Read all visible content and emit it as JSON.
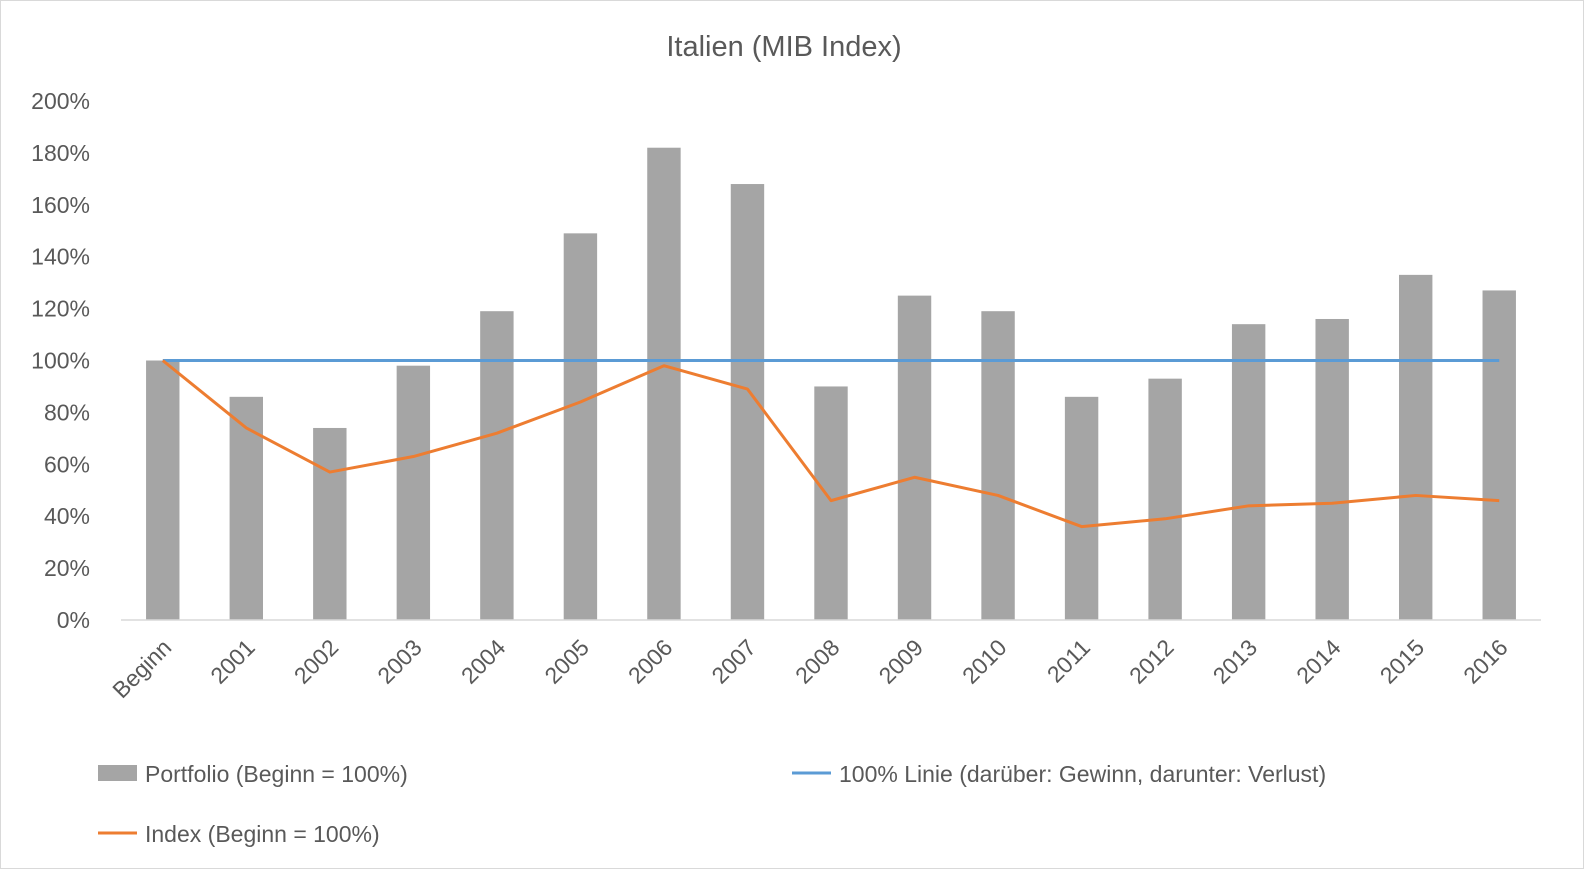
{
  "chart_data": {
    "type": "bar",
    "title": "Italien (MIB Index)",
    "categories": [
      "Beginn",
      "2001",
      "2002",
      "2003",
      "2004",
      "2005",
      "2006",
      "2007",
      "2008",
      "2009",
      "2010",
      "2011",
      "2012",
      "2013",
      "2014",
      "2015",
      "2016"
    ],
    "y_tick_labels": [
      "0%",
      "20%",
      "40%",
      "60%",
      "80%",
      "100%",
      "120%",
      "140%",
      "160%",
      "180%",
      "200%"
    ],
    "ylim": [
      0,
      200
    ],
    "y_step": 20,
    "grid": false,
    "legend_position": "bottom",
    "series": [
      {
        "name": "Portfolio (Beginn = 100%)",
        "type": "bar",
        "color": "#a5a5a5",
        "values": [
          100,
          86,
          74,
          98,
          119,
          149,
          182,
          168,
          90,
          125,
          119,
          86,
          93,
          114,
          116,
          133,
          127
        ]
      },
      {
        "name": "100% Linie (darüber: Gewinn, darunter: Verlust)",
        "type": "line",
        "color": "#5b9bd5",
        "values": [
          100,
          100,
          100,
          100,
          100,
          100,
          100,
          100,
          100,
          100,
          100,
          100,
          100,
          100,
          100,
          100,
          100
        ]
      },
      {
        "name": "Index (Beginn = 100%)",
        "type": "line",
        "color": "#ed7d31",
        "values": [
          100,
          74,
          57,
          63,
          72,
          84,
          98,
          89,
          46,
          55,
          48,
          36,
          39,
          44,
          45,
          48,
          46
        ]
      }
    ]
  }
}
